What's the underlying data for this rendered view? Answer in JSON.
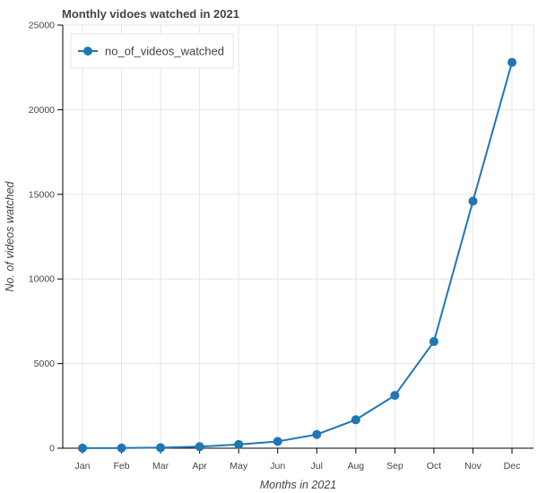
{
  "chart_data": {
    "type": "line",
    "title": "Monthly vidoes watched in 2021",
    "xlabel": "Months in 2021",
    "ylabel": "No. of videos watched",
    "categories": [
      "Jan",
      "Feb",
      "Mar",
      "Apr",
      "May",
      "Jun",
      "Jul",
      "Aug",
      "Sep",
      "Oct",
      "Nov",
      "Dec"
    ],
    "series": [
      {
        "name": "no_of_videos_watched",
        "color": "#1f77b4",
        "values": [
          5,
          10,
          30,
          90,
          220,
          400,
          810,
          1680,
          3120,
          6300,
          14600,
          22800
        ]
      }
    ],
    "ylim": [
      0,
      25000
    ],
    "yticks": [
      "0",
      "5000",
      "10000",
      "15000",
      "20000",
      "25000"
    ],
    "grid": true,
    "legend_position": "top-left"
  }
}
